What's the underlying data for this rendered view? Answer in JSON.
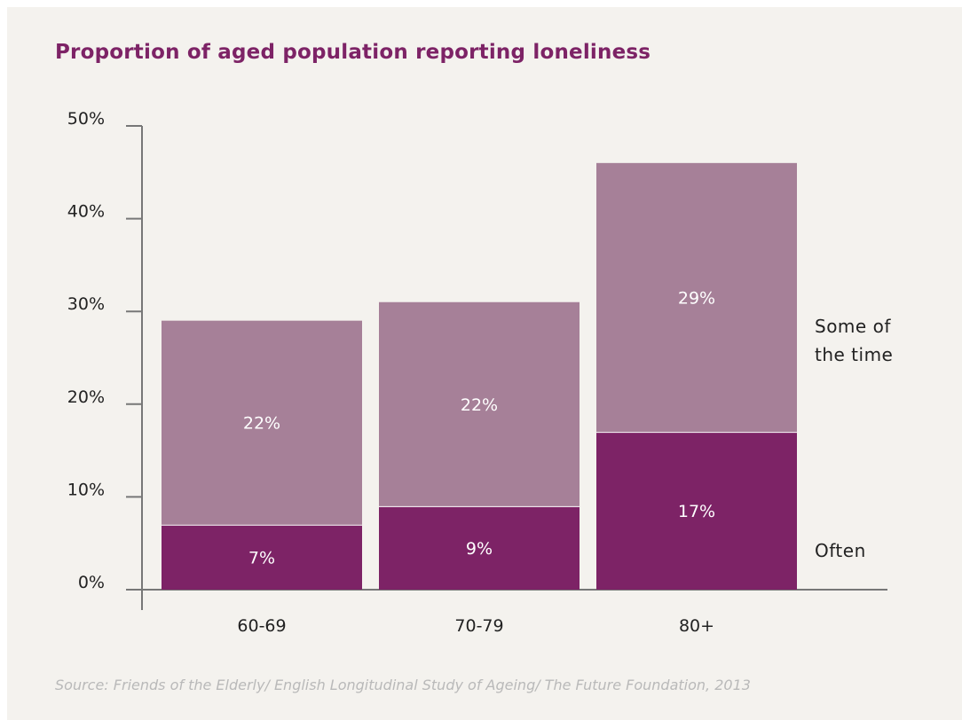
{
  "title": "Proportion of aged population reporting loneliness",
  "source": "Source: Friends of the Elderly/ English Longitudinal Study of Ageing/ The Future Foundation, 2013",
  "colors": {
    "background": "#f4f2ee",
    "title": "#7d2366",
    "often": "#7d2366",
    "some_of_the_time": "#a68098",
    "axis": "#777777"
  },
  "chart_data": {
    "type": "bar",
    "stacked": true,
    "title": "Proportion of aged population reporting loneliness",
    "categories": [
      "60-69",
      "70-79",
      "80+"
    ],
    "series": [
      {
        "name": "Often",
        "values": [
          7,
          9,
          17
        ],
        "labels": [
          "7%",
          "9%",
          "17%"
        ],
        "color": "#7d2366"
      },
      {
        "name": "Some of the time",
        "values": [
          22,
          22,
          29
        ],
        "labels": [
          "22%",
          "22%",
          "29%"
        ],
        "color": "#a68098"
      }
    ],
    "ylim": [
      0,
      50
    ],
    "yticks": [
      0,
      10,
      20,
      30,
      40,
      50
    ],
    "ytick_labels": [
      "0%",
      "10%",
      "20%",
      "30%",
      "40%",
      "50%"
    ],
    "series_label_lines": [
      [
        "Often"
      ],
      [
        "Some of",
        "the time"
      ]
    ],
    "grid": false,
    "legend": "right"
  }
}
